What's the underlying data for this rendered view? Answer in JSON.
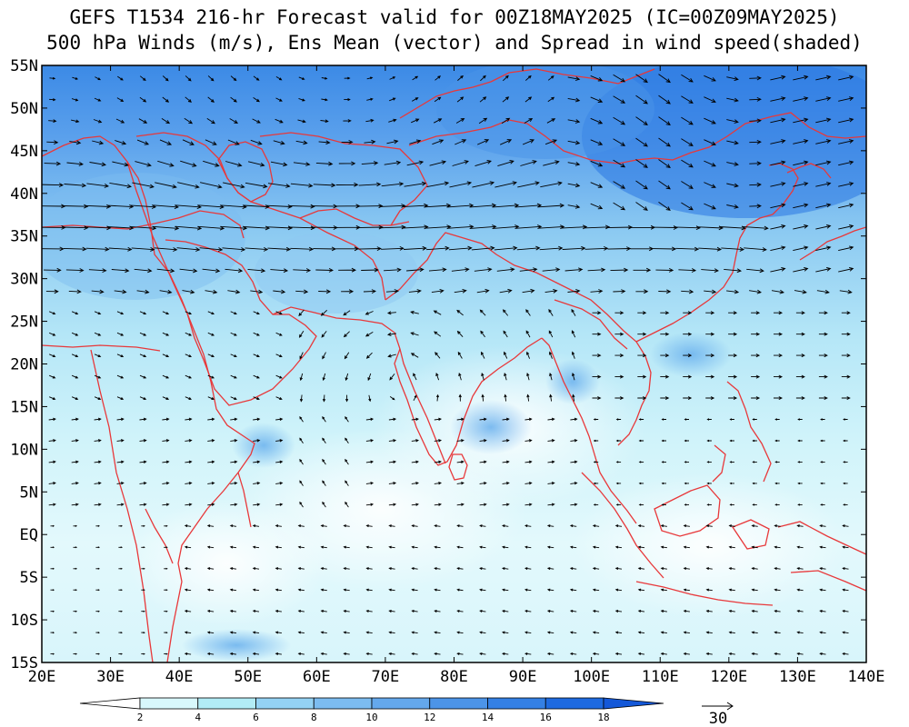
{
  "header": {
    "title_line1": "GEFS T1534 216-hr Forecast valid for 00Z18MAY2025 (IC=00Z09MAY2025)",
    "title_line2": "500 hPa Winds (m/s), Ens Mean (vector) and Spread in wind speed(shaded)"
  },
  "map": {
    "lon_range": [
      20,
      140
    ],
    "lat_range": [
      -15,
      55
    ],
    "lon_ticks": [
      {
        "value": 20,
        "label": "20E"
      },
      {
        "value": 30,
        "label": "30E"
      },
      {
        "value": 40,
        "label": "40E"
      },
      {
        "value": 50,
        "label": "50E"
      },
      {
        "value": 60,
        "label": "60E"
      },
      {
        "value": 70,
        "label": "70E"
      },
      {
        "value": 80,
        "label": "80E"
      },
      {
        "value": 90,
        "label": "90E"
      },
      {
        "value": 100,
        "label": "100E"
      },
      {
        "value": 110,
        "label": "110E"
      },
      {
        "value": 120,
        "label": "120E"
      },
      {
        "value": 130,
        "label": "130E"
      },
      {
        "value": 140,
        "label": "140E"
      }
    ],
    "lat_ticks": [
      {
        "value": 55,
        "label": "55N"
      },
      {
        "value": 50,
        "label": "50N"
      },
      {
        "value": 45,
        "label": "45N"
      },
      {
        "value": 40,
        "label": "40N"
      },
      {
        "value": 35,
        "label": "35N"
      },
      {
        "value": 30,
        "label": "30N"
      },
      {
        "value": 25,
        "label": "25N"
      },
      {
        "value": 20,
        "label": "20N"
      },
      {
        "value": 15,
        "label": "15N"
      },
      {
        "value": 10,
        "label": "10N"
      },
      {
        "value": 5,
        "label": "5N"
      },
      {
        "value": 0,
        "label": "EQ"
      },
      {
        "value": -5,
        "label": "5S"
      },
      {
        "value": -10,
        "label": "10S"
      },
      {
        "value": -15,
        "label": "15S"
      }
    ],
    "coastline_color": "#e8383a"
  },
  "colorbar": {
    "labels": [
      "2",
      "4",
      "6",
      "8",
      "10",
      "12",
      "14",
      "16",
      "18"
    ],
    "colors": [
      "#ffffff",
      "#d8f8fc",
      "#b2ecf6",
      "#94d2f4",
      "#7cbcf0",
      "#64a8ec",
      "#4c94e8",
      "#3480e4",
      "#1e6ae0",
      "#1458d8"
    ]
  },
  "reference_vector": {
    "label": "30"
  }
}
